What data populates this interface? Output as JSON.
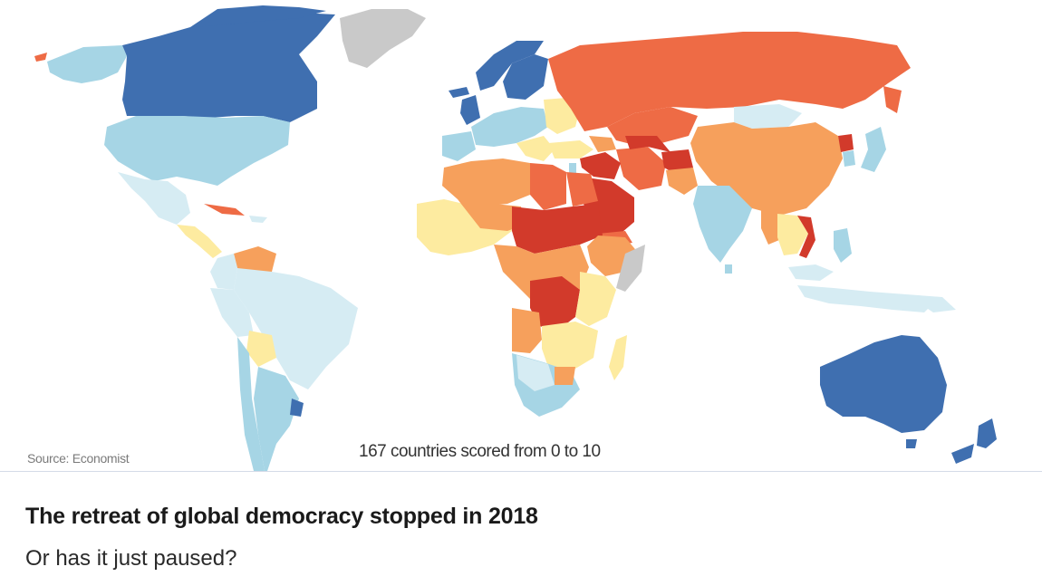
{
  "map": {
    "source": "Source: Economist",
    "scale_note": "167 countries scored from 0 to 10",
    "colors": {
      "full_democracy": "#3f6fb0",
      "democracy_light": "#a6d5e5",
      "flawed_pale": "#d6ecf3",
      "hybrid_yellow": "#fdeba0",
      "hybrid_orange": "#f6a05c",
      "authoritarian": "#ee6b45",
      "most_authoritarian": "#d23a2b",
      "no_data": "#c9c9c9"
    }
  },
  "article": {
    "headline": "The retreat of global democracy stopped in 2018",
    "dek": "Or has it just paused?"
  }
}
